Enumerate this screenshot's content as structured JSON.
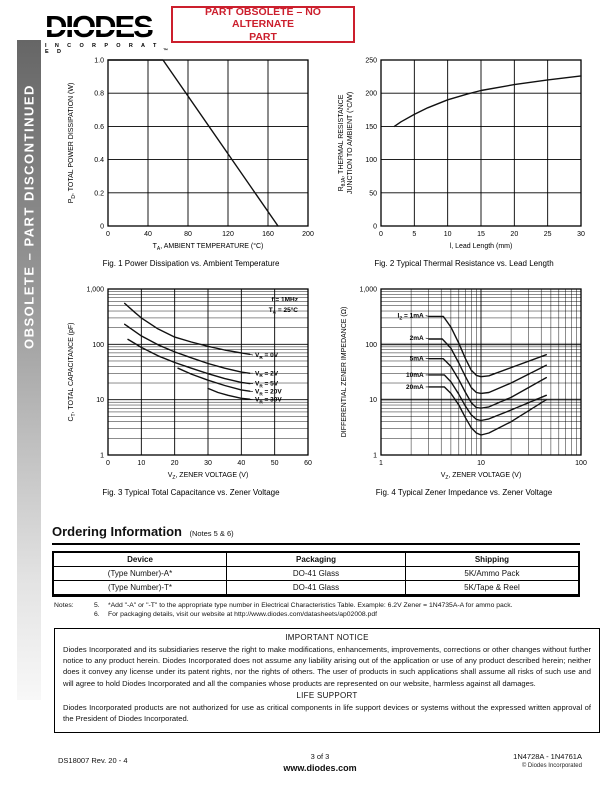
{
  "header": {
    "logo_text": "DIODES",
    "logo_sub": "I N C O R P O R A T E D",
    "logo_tm": "™",
    "banner_line1": "PART OBSOLETE – NO ALTERNATE",
    "banner_line2": "PART",
    "banner_color": "#cc1f2d"
  },
  "sidebar": {
    "label": "OBSOLETE – PART DISCONTINUED"
  },
  "chart_data": [
    {
      "type": "line",
      "title": "Fig. 1  Power Dissipation vs. Ambient Temperature",
      "xlabel": "T{A}, AMBIENT TEMPERATURE (°C)",
      "ylabel": "P{D}, TOTAL POWER DISSIPATION (W)",
      "xscale": "linear",
      "yscale": "linear",
      "xlim": [
        0,
        200
      ],
      "ylim": [
        0,
        1
      ],
      "xticks": [
        {
          "v": 0,
          "t": "0"
        },
        {
          "v": 40,
          "t": "40"
        },
        {
          "v": 80,
          "t": "80"
        },
        {
          "v": 120,
          "t": "120"
        },
        {
          "v": 160,
          "t": "160"
        },
        {
          "v": 200,
          "t": "200"
        }
      ],
      "yticks": [
        {
          "v": 0,
          "t": "0"
        },
        {
          "v": 0.2,
          "t": "0.2"
        },
        {
          "v": 0.4,
          "t": "0.4"
        },
        {
          "v": 0.6,
          "t": "0.6"
        },
        {
          "v": 0.8,
          "t": "0.8"
        },
        {
          "v": 1,
          "t": "1.0"
        }
      ],
      "series": [
        {
          "name": "power-derating",
          "points": [
            [
              0,
              1
            ],
            [
              55,
              1
            ],
            [
              170,
              0
            ]
          ]
        }
      ]
    },
    {
      "type": "line",
      "title": "Fig. 2  Typical Thermal Resistance vs. Lead Length",
      "xlabel": "l, Lead Length (mm)",
      "ylabel": "R{θJA}, THERMAL RESISTANCE|JUNCTION TO AMBIENT (°C/W)",
      "xscale": "linear",
      "yscale": "linear",
      "xlim": [
        0,
        30
      ],
      "ylim": [
        0,
        250
      ],
      "xticks": [
        {
          "v": 0,
          "t": "0"
        },
        {
          "v": 5,
          "t": "5"
        },
        {
          "v": 10,
          "t": "10"
        },
        {
          "v": 15,
          "t": "15"
        },
        {
          "v": 20,
          "t": "20"
        },
        {
          "v": 25,
          "t": "25"
        },
        {
          "v": 30,
          "t": "30"
        }
      ],
      "yticks": [
        {
          "v": 0,
          "t": "0"
        },
        {
          "v": 50,
          "t": "50"
        },
        {
          "v": 100,
          "t": "100"
        },
        {
          "v": 150,
          "t": "150"
        },
        {
          "v": 200,
          "t": "200"
        },
        {
          "v": 250,
          "t": "250"
        }
      ],
      "series": [
        {
          "name": "thermal-resistance",
          "points": [
            [
              2,
              150
            ],
            [
              3,
              157
            ],
            [
              5,
              168
            ],
            [
              7,
              178
            ],
            [
              10,
              190
            ],
            [
              13,
              199
            ],
            [
              15,
              204
            ],
            [
              20,
              213
            ],
            [
              25,
              220
            ],
            [
              30,
              226
            ]
          ]
        }
      ]
    },
    {
      "type": "line",
      "title": "Fig. 3  Typical Total Capacitance vs. Zener Voltage",
      "xlabel": "V{Z}, ZENER VOLTAGE (V)",
      "ylabel": "C{T}, TOTAL CAPACITANCE (pF)",
      "xscale": "linear",
      "yscale": "log",
      "xlim": [
        0,
        60
      ],
      "ylim": [
        1,
        1000
      ],
      "xticks": [
        {
          "v": 0,
          "t": "0"
        },
        {
          "v": 10,
          "t": "10"
        },
        {
          "v": 20,
          "t": "20"
        },
        {
          "v": 30,
          "t": "30"
        },
        {
          "v": 40,
          "t": "40"
        },
        {
          "v": 50,
          "t": "50"
        },
        {
          "v": 60,
          "t": "60"
        }
      ],
      "yticks": [
        {
          "v": 1,
          "t": "1"
        },
        {
          "v": 10,
          "t": "10"
        },
        {
          "v": 100,
          "t": "100"
        },
        {
          "v": 1000,
          "t": "1,000"
        }
      ],
      "annotations": [
        {
          "text": "f = 1MHz",
          "x": 57,
          "y": 640,
          "anchor": "end"
        },
        {
          "text": "T{A} = 25°C",
          "x": 57,
          "y": 420,
          "anchor": "end"
        }
      ],
      "series": [
        {
          "name": "VR-0V",
          "label": "V{R} = 0V",
          "label_at": [
            43.5,
            64
          ],
          "label_anchor": "start",
          "points": [
            [
              5,
              550
            ],
            [
              8,
              380
            ],
            [
              10,
              300
            ],
            [
              15,
              190
            ],
            [
              20,
              135
            ],
            [
              25,
              110
            ],
            [
              30,
              92
            ],
            [
              35,
              79
            ],
            [
              40,
              70
            ],
            [
              42.5,
              66
            ]
          ]
        },
        {
          "name": "VR-2V",
          "label": "V{R} = 2V",
          "label_at": [
            43.5,
            30
          ],
          "label_anchor": "start",
          "points": [
            [
              5,
              230
            ],
            [
              8,
              172
            ],
            [
              10,
              142
            ],
            [
              15,
              98
            ],
            [
              20,
              73
            ],
            [
              25,
              57
            ],
            [
              30,
              45
            ],
            [
              35,
              37
            ],
            [
              40,
              31.5
            ],
            [
              42.5,
              30
            ]
          ]
        },
        {
          "name": "VR-5V",
          "label": "V{R} = 5V",
          "label_at": [
            43.5,
            19.5
          ],
          "label_anchor": "start",
          "points": [
            [
              6,
              123
            ],
            [
              8,
              104
            ],
            [
              10,
              88
            ],
            [
              15,
              62
            ],
            [
              20,
              47
            ],
            [
              25,
              37
            ],
            [
              30,
              29.5
            ],
            [
              35,
              24
            ],
            [
              40,
              20.5
            ],
            [
              42.5,
              19.5
            ]
          ]
        },
        {
          "name": "VR-20V",
          "label": "V{R} = 20V",
          "label_at": [
            43.5,
            14
          ],
          "label_anchor": "start",
          "points": [
            [
              21,
              37
            ],
            [
              25,
              29
            ],
            [
              30,
              22.5
            ],
            [
              35,
              18
            ],
            [
              40,
              15
            ],
            [
              42.5,
              14.2
            ]
          ]
        },
        {
          "name": "VR-30V",
          "label": "V{R} = 30V",
          "label_at": [
            43.5,
            10
          ],
          "label_anchor": "start",
          "points": [
            [
              30,
              16
            ],
            [
              33,
              13.5
            ],
            [
              36,
              12
            ],
            [
              40,
              10.6
            ],
            [
              42.5,
              10.2
            ]
          ]
        }
      ]
    },
    {
      "type": "line",
      "title": "Fig. 4  Typical Zener Impedance vs. Zener Voltage",
      "xlabel": "V{Z}, ZENER VOLTAGE (V)",
      "ylabel": "DIFFERENTIAL ZENER IMPEDANCE (Ω)",
      "xscale": "log",
      "yscale": "log",
      "xlim": [
        1,
        100
      ],
      "ylim": [
        1,
        1000
      ],
      "gray_lines": [
        100,
        10
      ],
      "xticks": [
        {
          "v": 1,
          "t": "1"
        },
        {
          "v": 10,
          "t": "10"
        },
        {
          "v": 100,
          "t": "100"
        }
      ],
      "yticks": [
        {
          "v": 1,
          "t": "1"
        },
        {
          "v": 10,
          "t": "10"
        },
        {
          "v": 100,
          "t": "100"
        },
        {
          "v": 1000,
          "t": "1,000"
        }
      ],
      "series": [
        {
          "name": "IZ-1mA",
          "label": "I{Z} = 1mA",
          "label_at": [
            2.8,
            330
          ],
          "label_anchor": "end",
          "points": [
            [
              3,
              320
            ],
            [
              4.2,
              320
            ],
            [
              5,
              205
            ],
            [
              6,
              105
            ],
            [
              7,
              55
            ],
            [
              8,
              34
            ],
            [
              9,
              27.5
            ],
            [
              10,
              26
            ],
            [
              12,
              27
            ],
            [
              20,
              38
            ],
            [
              45,
              65
            ]
          ]
        },
        {
          "name": "IZ-2mA",
          "label": "2mA",
          "label_at": [
            2.8,
            130
          ],
          "label_anchor": "end",
          "points": [
            [
              3,
              125
            ],
            [
              4.1,
              125
            ],
            [
              5,
              85
            ],
            [
              6,
              46
            ],
            [
              7,
              26
            ],
            [
              8,
              16.5
            ],
            [
              9,
              13.5
            ],
            [
              10,
              13
            ],
            [
              12,
              13.5
            ],
            [
              20,
              20
            ],
            [
              45,
              42
            ]
          ]
        },
        {
          "name": "IZ-5mA",
          "label": "5mA",
          "label_at": [
            2.8,
            56
          ],
          "label_anchor": "end",
          "points": [
            [
              3,
              55
            ],
            [
              4.2,
              55
            ],
            [
              5,
              40
            ],
            [
              6,
              23
            ],
            [
              7,
              13.5
            ],
            [
              8,
              8.8
            ],
            [
              9,
              7.2
            ],
            [
              10,
              7
            ],
            [
              12,
              7.4
            ],
            [
              20,
              11
            ],
            [
              45,
              25
            ]
          ]
        },
        {
          "name": "IZ-10mA",
          "label": "10mA",
          "label_at": [
            2.8,
            28
          ],
          "label_anchor": "end",
          "points": [
            [
              3,
              28
            ],
            [
              4.3,
              28
            ],
            [
              5,
              21
            ],
            [
              6,
              12.5
            ],
            [
              7,
              7.6
            ],
            [
              8,
              5.3
            ],
            [
              9,
              4.4
            ],
            [
              10,
              4.2
            ],
            [
              12,
              4.5
            ],
            [
              20,
              6.5
            ],
            [
              45,
              12
            ]
          ]
        },
        {
          "name": "IZ-20mA",
          "label": "20mA",
          "label_at": [
            2.8,
            17
          ],
          "label_anchor": "end",
          "points": [
            [
              3,
              17
            ],
            [
              4.3,
              17
            ],
            [
              5,
              13
            ],
            [
              6,
              8
            ],
            [
              7,
              4.7
            ],
            [
              8,
              3.1
            ],
            [
              9,
              2.5
            ],
            [
              10,
              2.3
            ],
            [
              12,
              2.5
            ],
            [
              20,
              4
            ],
            [
              45,
              10
            ]
          ]
        }
      ]
    }
  ],
  "ordering": {
    "title": "Ordering Information",
    "title_note": "(Notes 5 & 6)",
    "table": {
      "headers": [
        "Device",
        "Packaging",
        "Shipping"
      ],
      "rows": [
        [
          "(Type Number)-A*",
          "DO-41 Glass",
          "5K/Ammo Pack"
        ],
        [
          "(Type Number)-T*",
          "DO-41 Glass",
          "5K/Tape & Reel"
        ]
      ]
    },
    "notes_label": "Notes:",
    "note_nums": [
      "5.",
      "6."
    ],
    "notes": [
      "*Add \"-A\" or \"-T\" to the appropriate type number in Electrical Characteristics Table.  Example:  6.2V Zener = 1N4735A-A for ammo pack.",
      "For packaging details, visit our website at http://www.diodes.com/datasheets/ap02008.pdf"
    ]
  },
  "notice": {
    "title": "IMPORTANT NOTICE",
    "body": "Diodes Incorporated and its subsidiaries reserve the right to make modifications, enhancements, improvements, corrections or other changes without further notice to any product herein. Diodes Incorporated does not assume any liability arising out of the application or use of any product described herein; neither does it convey any license under its patent rights, nor the rights of others. The user of products in such applications shall assume all risks of such use and will agree to hold Diodes Incorporated and all the companies whose products are represented on our website, harmless against all damages.",
    "life_title": "LIFE SUPPORT",
    "life_body": "Diodes Incorporated products are not authorized for use as critical components in life support devices or systems without the expressed written approval of the President of Diodes Incorporated."
  },
  "footer": {
    "doc": "DS18007 Rev. 20 - 4",
    "page": "3 of 3",
    "site": "www.diodes.com",
    "part_range": "1N4728A - 1N4761A",
    "copyright": "© Diodes Incorporated"
  }
}
